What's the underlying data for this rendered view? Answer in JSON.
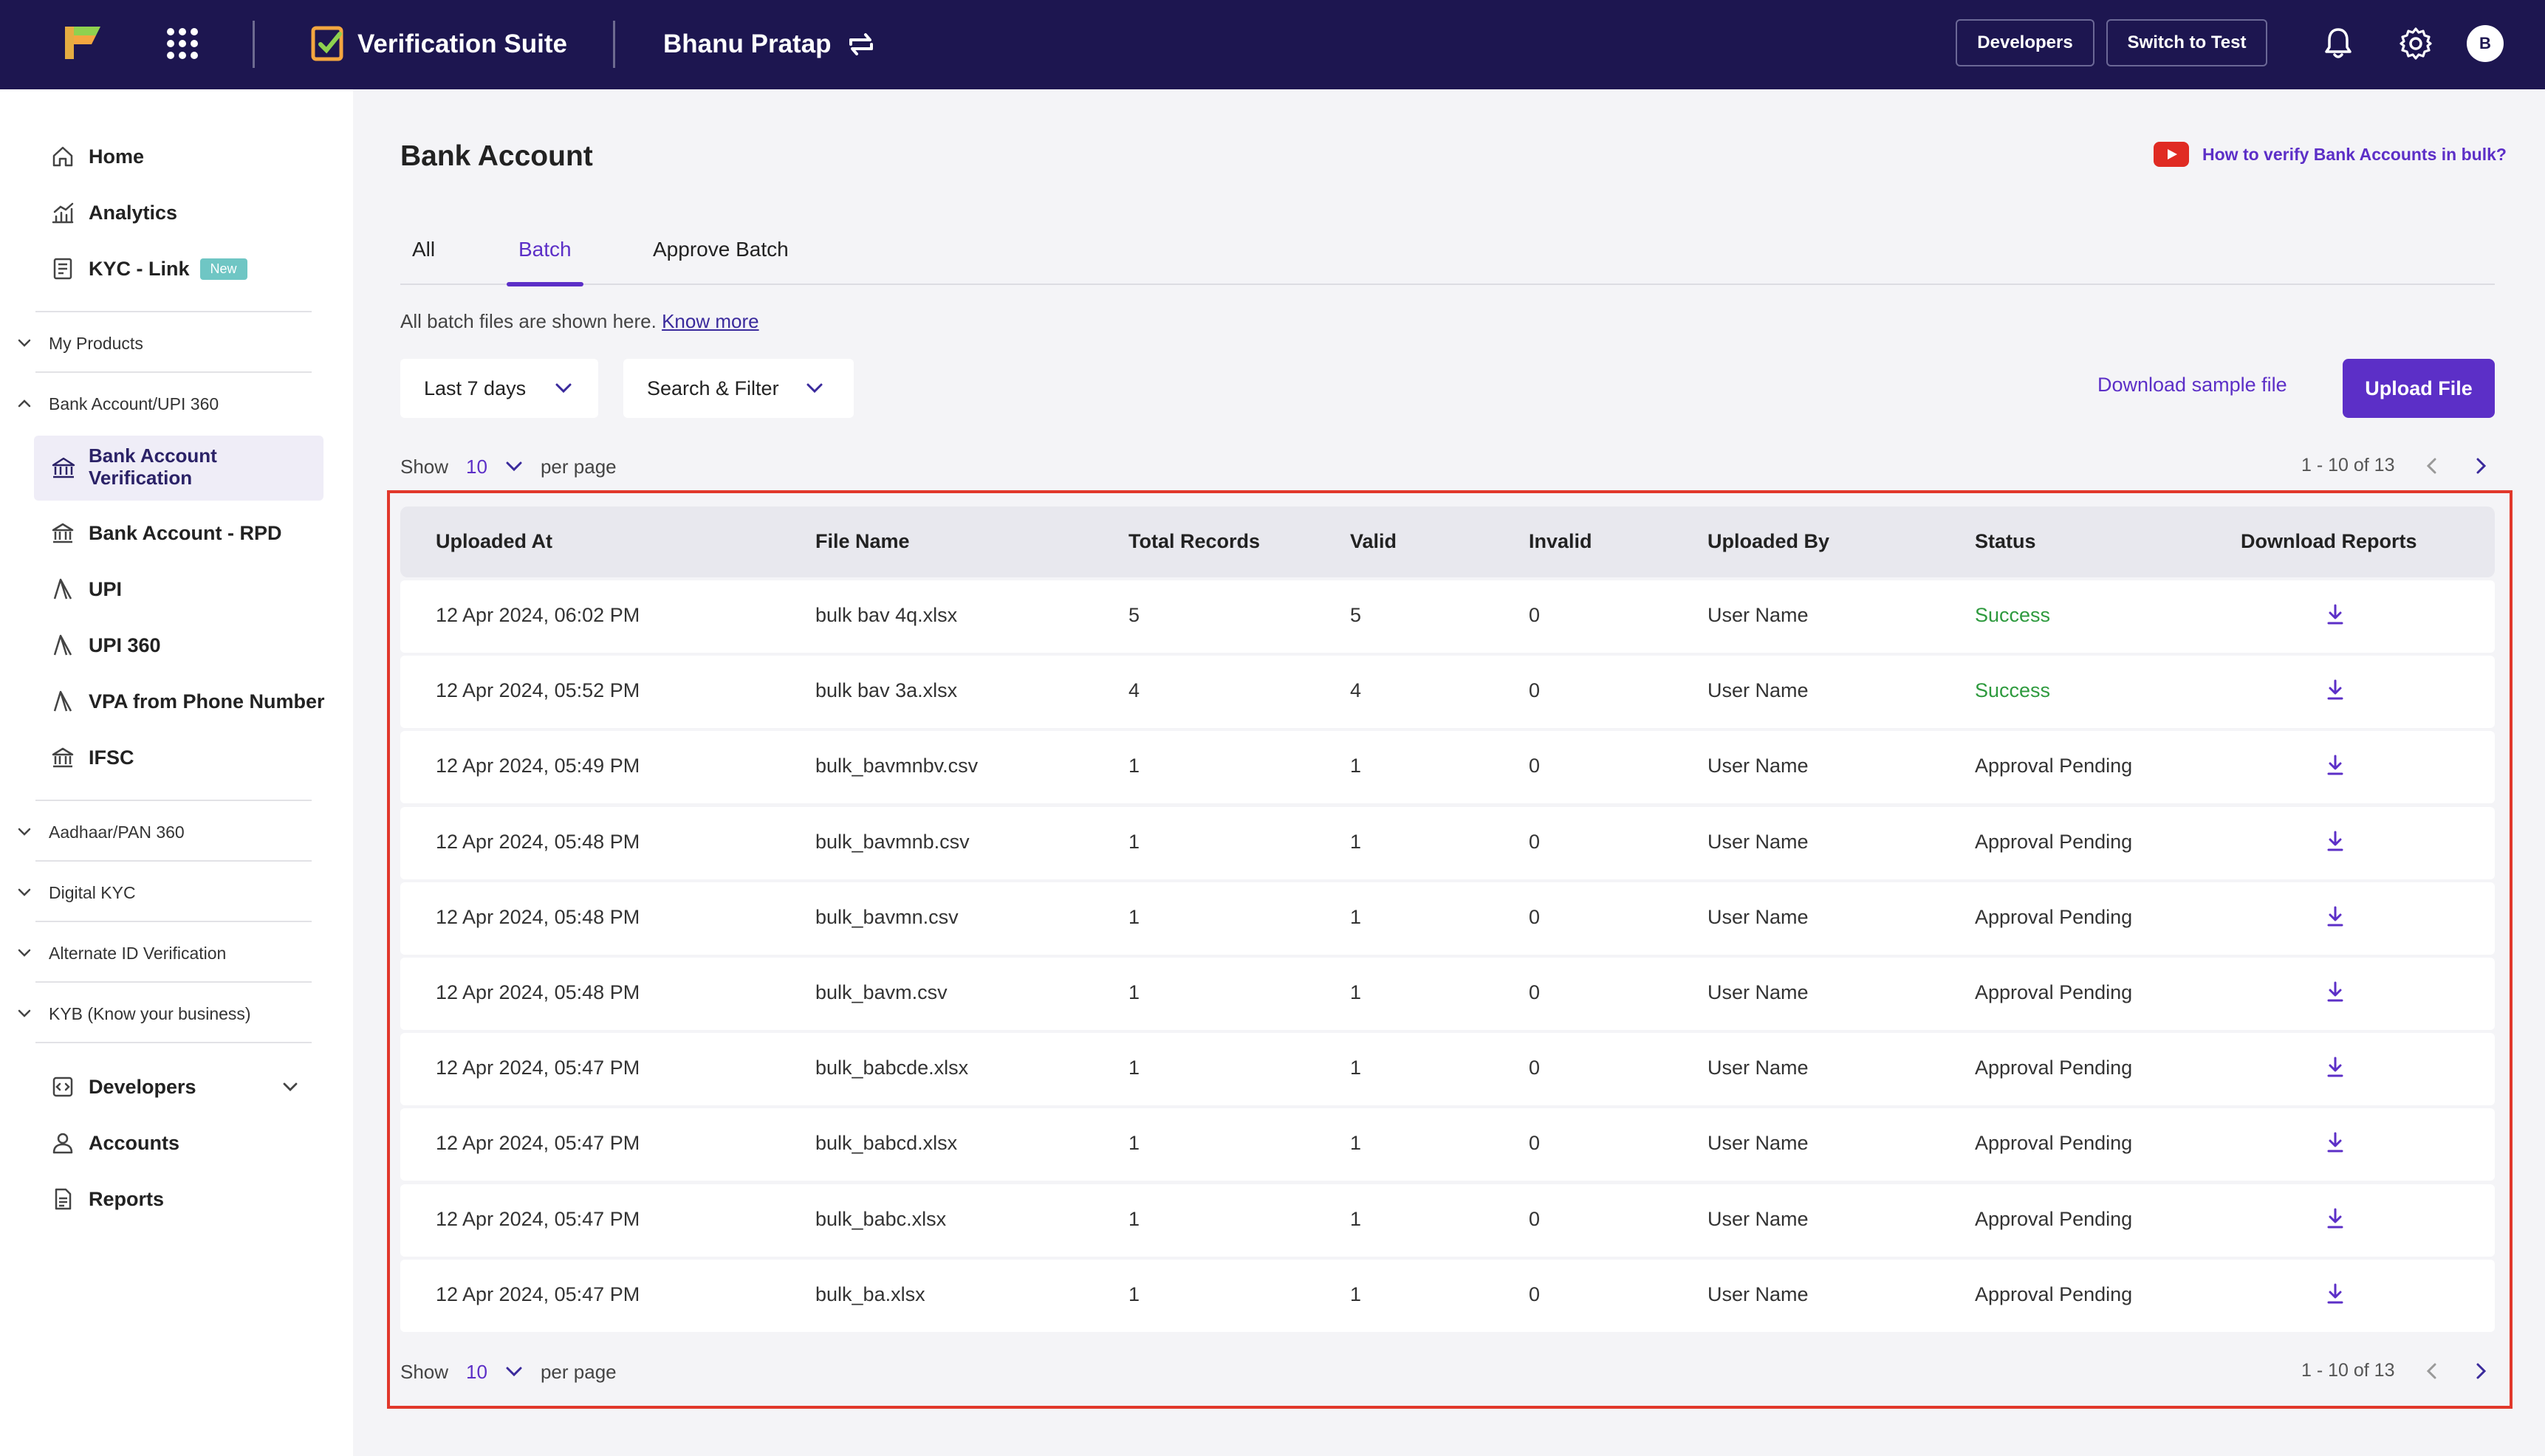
{
  "topbar": {
    "suite_title": "Verification Suite",
    "merchant_name": "Bhanu Pratap",
    "developers_button": "Developers",
    "switch_button": "Switch to Test",
    "avatar_initial": "B"
  },
  "sidebar": {
    "top_items": [
      {
        "label": "Home",
        "icon": "home-icon"
      },
      {
        "label": "Analytics",
        "icon": "analytics-icon"
      },
      {
        "label": "KYC - Link",
        "icon": "link-icon",
        "badge": "New"
      }
    ],
    "sections": {
      "my_products": "My Products",
      "bank_upi": "Bank Account/UPI 360",
      "aadhaar": "Aadhaar/PAN 360",
      "digital_kyc": "Digital KYC",
      "alternate_id": "Alternate ID Verification",
      "kyb": "KYB (Know your business)"
    },
    "bank_sub_items": [
      {
        "label": "Bank Account Verification",
        "active": true
      },
      {
        "label": "Bank Account - RPD"
      },
      {
        "label": "UPI"
      },
      {
        "label": "UPI 360"
      },
      {
        "label": "VPA from Phone Number"
      },
      {
        "label": "IFSC"
      }
    ],
    "bottom_items": [
      {
        "label": "Developers"
      },
      {
        "label": "Accounts"
      },
      {
        "label": "Reports"
      }
    ]
  },
  "main": {
    "title": "Bank Account",
    "help_link": "How to verify Bank Accounts in bulk?",
    "tabs": [
      {
        "label": "All"
      },
      {
        "label": "Batch",
        "active": true
      },
      {
        "label": "Approve Batch"
      }
    ],
    "info_text": "All batch files are shown here.",
    "know_more": "Know more",
    "date_filter": "Last 7 days",
    "search_filter": "Search & Filter",
    "download_sample": "Download sample file",
    "upload_button": "Upload File",
    "pagination": {
      "show_label": "Show",
      "per_page_value": "10",
      "per_page_label": "per page",
      "range": "1 - 10 of 13"
    },
    "table": {
      "headers": [
        "Uploaded At",
        "File Name",
        "Total Records",
        "Valid",
        "Invalid",
        "Uploaded By",
        "Status",
        "Download Reports"
      ],
      "rows": [
        {
          "uploaded_at": "12 Apr 2024, 06:02 PM",
          "file_name": "bulk bav 4q.xlsx",
          "total": "5",
          "valid": "5",
          "invalid": "0",
          "uploaded_by": "User Name",
          "status": "Success"
        },
        {
          "uploaded_at": "12 Apr 2024, 05:52 PM",
          "file_name": "bulk bav 3a.xlsx",
          "total": "4",
          "valid": "4",
          "invalid": "0",
          "uploaded_by": "User Name",
          "status": "Success"
        },
        {
          "uploaded_at": "12 Apr 2024, 05:49 PM",
          "file_name": "bulk_bavmnbv.csv",
          "total": "1",
          "valid": "1",
          "invalid": "0",
          "uploaded_by": "User Name",
          "status": "Approval Pending"
        },
        {
          "uploaded_at": "12 Apr 2024, 05:48 PM",
          "file_name": "bulk_bavmnb.csv",
          "total": "1",
          "valid": "1",
          "invalid": "0",
          "uploaded_by": "User Name",
          "status": "Approval Pending"
        },
        {
          "uploaded_at": "12 Apr 2024, 05:48 PM",
          "file_name": "bulk_bavmn.csv",
          "total": "1",
          "valid": "1",
          "invalid": "0",
          "uploaded_by": "User Name",
          "status": "Approval Pending"
        },
        {
          "uploaded_at": "12 Apr 2024, 05:48 PM",
          "file_name": "bulk_bavm.csv",
          "total": "1",
          "valid": "1",
          "invalid": "0",
          "uploaded_by": "User Name",
          "status": "Approval Pending"
        },
        {
          "uploaded_at": "12 Apr 2024, 05:47 PM",
          "file_name": "bulk_babcde.xlsx",
          "total": "1",
          "valid": "1",
          "invalid": "0",
          "uploaded_by": "User Name",
          "status": "Approval Pending"
        },
        {
          "uploaded_at": "12 Apr 2024, 05:47 PM",
          "file_name": "bulk_babcd.xlsx",
          "total": "1",
          "valid": "1",
          "invalid": "0",
          "uploaded_by": "User Name",
          "status": "Approval Pending"
        },
        {
          "uploaded_at": "12 Apr 2024, 05:47 PM",
          "file_name": "bulk_babc.xlsx",
          "total": "1",
          "valid": "1",
          "invalid": "0",
          "uploaded_by": "User Name",
          "status": "Approval Pending"
        },
        {
          "uploaded_at": "12 Apr 2024, 05:47 PM",
          "file_name": "bulk_ba.xlsx",
          "total": "1",
          "valid": "1",
          "invalid": "0",
          "uploaded_by": "User Name",
          "status": "Approval Pending"
        }
      ]
    }
  },
  "colors": {
    "topbar_bg": "#1d1650",
    "accent": "#5c2fc7",
    "success": "#2e9a3e",
    "highlight_frame": "#e1382b"
  }
}
